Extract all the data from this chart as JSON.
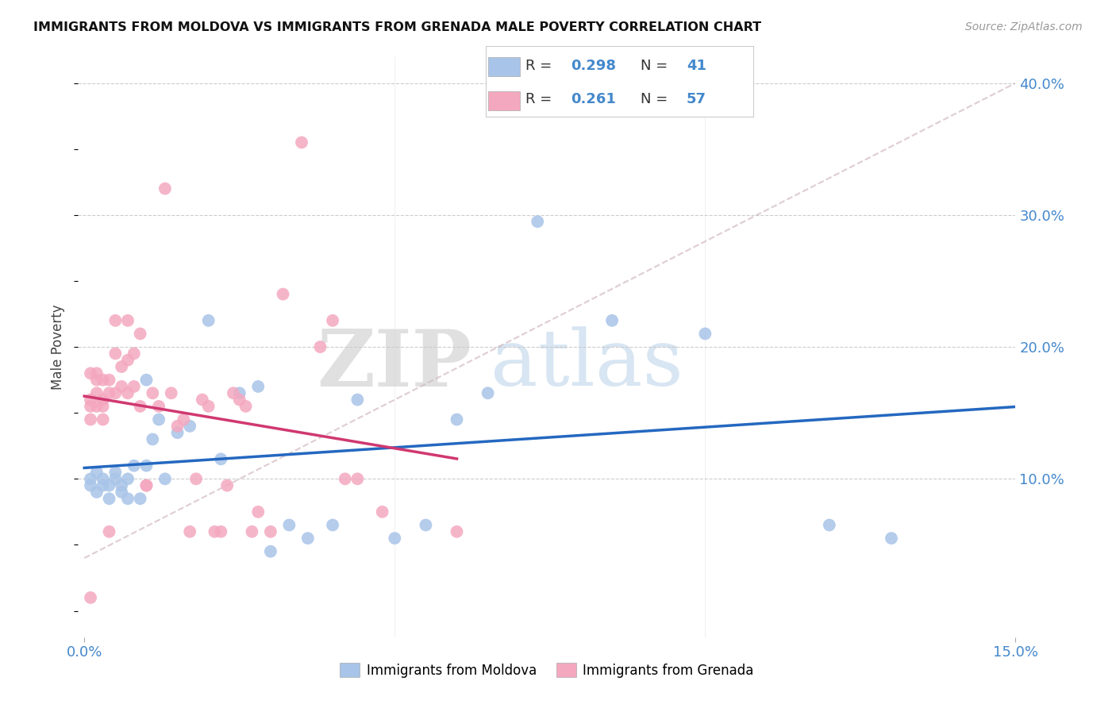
{
  "title": "IMMIGRANTS FROM MOLDOVA VS IMMIGRANTS FROM GRENADA MALE POVERTY CORRELATION CHART",
  "source": "Source: ZipAtlas.com",
  "ylabel": "Male Poverty",
  "xlim": [
    0.0,
    0.15
  ],
  "ylim": [
    -0.02,
    0.42
  ],
  "moldova_color": "#a8c4e8",
  "grenada_color": "#f4a8c0",
  "trendline_moldova_color": "#2468c0",
  "trendline_grenada_color": "#d03870",
  "trendline_dashed_color": "#d0b8c0",
  "legend_R_moldova": "0.298",
  "legend_N_moldova": "41",
  "legend_R_grenada": "0.261",
  "legend_N_grenada": "57",
  "moldova_x": [
    0.001,
    0.001,
    0.002,
    0.002,
    0.003,
    0.003,
    0.004,
    0.004,
    0.005,
    0.005,
    0.006,
    0.006,
    0.007,
    0.007,
    0.008,
    0.009,
    0.01,
    0.01,
    0.011,
    0.012,
    0.013,
    0.015,
    0.017,
    0.02,
    0.022,
    0.025,
    0.028,
    0.03,
    0.033,
    0.036,
    0.04,
    0.044,
    0.05,
    0.055,
    0.06,
    0.065,
    0.073,
    0.085,
    0.1,
    0.12,
    0.13
  ],
  "moldova_y": [
    0.1,
    0.095,
    0.09,
    0.105,
    0.095,
    0.1,
    0.085,
    0.095,
    0.1,
    0.105,
    0.09,
    0.095,
    0.085,
    0.1,
    0.11,
    0.085,
    0.175,
    0.11,
    0.13,
    0.145,
    0.1,
    0.135,
    0.14,
    0.22,
    0.115,
    0.165,
    0.17,
    0.045,
    0.065,
    0.055,
    0.065,
    0.16,
    0.055,
    0.065,
    0.145,
    0.165,
    0.295,
    0.22,
    0.21,
    0.065,
    0.055
  ],
  "grenada_x": [
    0.001,
    0.001,
    0.001,
    0.001,
    0.001,
    0.002,
    0.002,
    0.002,
    0.002,
    0.003,
    0.003,
    0.003,
    0.003,
    0.004,
    0.004,
    0.004,
    0.005,
    0.005,
    0.005,
    0.006,
    0.006,
    0.007,
    0.007,
    0.007,
    0.008,
    0.008,
    0.009,
    0.009,
    0.01,
    0.01,
    0.011,
    0.012,
    0.013,
    0.014,
    0.015,
    0.016,
    0.017,
    0.018,
    0.019,
    0.02,
    0.021,
    0.022,
    0.023,
    0.024,
    0.025,
    0.026,
    0.027,
    0.028,
    0.03,
    0.032,
    0.035,
    0.038,
    0.04,
    0.042,
    0.044,
    0.048,
    0.06
  ],
  "grenada_y": [
    0.18,
    0.16,
    0.155,
    0.145,
    0.01,
    0.18,
    0.175,
    0.165,
    0.155,
    0.175,
    0.16,
    0.155,
    0.145,
    0.175,
    0.165,
    0.06,
    0.22,
    0.195,
    0.165,
    0.185,
    0.17,
    0.22,
    0.19,
    0.165,
    0.195,
    0.17,
    0.21,
    0.155,
    0.095,
    0.095,
    0.165,
    0.155,
    0.32,
    0.165,
    0.14,
    0.145,
    0.06,
    0.1,
    0.16,
    0.155,
    0.06,
    0.06,
    0.095,
    0.165,
    0.16,
    0.155,
    0.06,
    0.075,
    0.06,
    0.24,
    0.355,
    0.2,
    0.22,
    0.1,
    0.1,
    0.075,
    0.06
  ],
  "watermark_zip": "ZIP",
  "watermark_atlas": "atlas",
  "background_color": "#ffffff",
  "grid_color": "#cccccc",
  "ytick_label_color": "#4488cc",
  "xtick_label_color": "#4488cc",
  "text_color": "#444444",
  "legend_text_color": "#4488cc"
}
